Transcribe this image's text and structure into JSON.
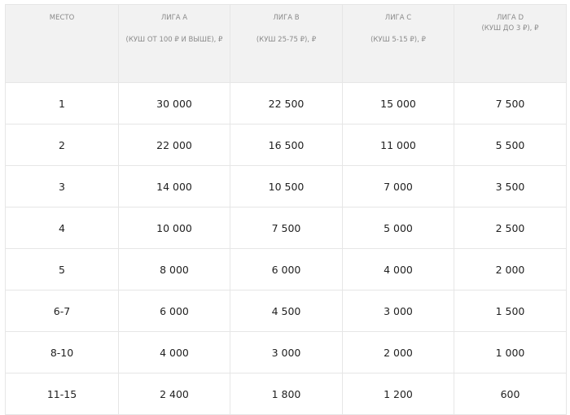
{
  "headers": [
    {
      "title": "Место",
      "sub": ""
    },
    {
      "title": "Лига A",
      "sub": "(кУШ от 100 ₽ и выше), ₽"
    },
    {
      "title": "Лига B",
      "sub": "(кУШ 25-75 ₽),  ₽"
    },
    {
      "title": "Лига C",
      "sub": "(кУШ 5-15 ₽),  ₽"
    },
    {
      "title": "Лига D",
      "sub": "(кУШ до 3 ₽),  ₽"
    }
  ],
  "rows": [
    [
      "1",
      "30 000",
      "22 500",
      "15 000",
      "7 500"
    ],
    [
      "2",
      "22 000",
      "16 500",
      "11 000",
      "5 500"
    ],
    [
      "3",
      "14 000",
      "10 500",
      "7 000",
      "3 500"
    ],
    [
      "4",
      "10 000",
      "7 500",
      "5 000",
      "2 500"
    ],
    [
      "5",
      "8 000",
      "6 000",
      "4 000",
      "2 000"
    ],
    [
      "6-7",
      "6 000",
      "4 500",
      "3 000",
      "1 500"
    ],
    [
      "8-10",
      "4 000",
      "3 000",
      "2 000",
      "1 000"
    ],
    [
      "11-15",
      "2 400",
      "1 800",
      "1 200",
      "600"
    ]
  ]
}
